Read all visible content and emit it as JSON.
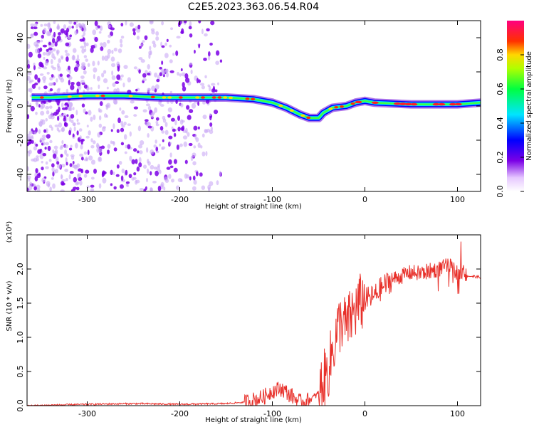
{
  "title": "C2E5.2023.363.06.54.R04",
  "colors": {
    "snr_line": "#e8302a",
    "spectrogram_low": "#7b00e6",
    "spectrogram_high": "#ff1a1a"
  },
  "chart_data": [
    {
      "type": "heatmap",
      "xlabel": "Height of straight line (km)",
      "ylabel": "Frequency (Hz)",
      "xlim": [
        -365,
        125
      ],
      "ylim": [
        -50,
        50
      ],
      "xticks": [
        -300,
        -200,
        -100,
        0,
        100
      ],
      "yticks": [
        -40,
        -20,
        0,
        20,
        40
      ],
      "colorbar": {
        "label": "Normalized spectral amplitude",
        "range": [
          0.0,
          1.0
        ],
        "ticks": [
          "0.0",
          "0.2",
          "0.4",
          "0.6",
          "0.8"
        ],
        "colormap": "rainbow (white-purple-blue-cyan-green-yellow-red-magenta)"
      },
      "ridge_frequency_track": {
        "x": [
          -360,
          -340,
          -300,
          -260,
          -220,
          -180,
          -150,
          -120,
          -100,
          -85,
          -70,
          -60,
          -50,
          -45,
          -35,
          -20,
          -10,
          0,
          10,
          50,
          100,
          125
        ],
        "y": [
          5,
          5,
          6,
          6,
          5,
          5,
          5,
          4,
          2,
          -1,
          -5,
          -7,
          -7,
          -4,
          -1,
          0,
          2,
          3,
          2,
          1,
          1,
          2
        ]
      },
      "grid": false
    },
    {
      "type": "line",
      "xlabel": "Height of straight line (km)",
      "ylabel": "SNR (10 * v/v)",
      "y_multiplier": "(x10⁴)",
      "xlim": [
        -365,
        125
      ],
      "ylim": [
        0,
        2.5
      ],
      "xticks": [
        -300,
        -200,
        -100,
        0,
        100
      ],
      "yticks": [
        "0.0",
        "0.5",
        "1.0",
        "1.5",
        "2.0"
      ],
      "series": [
        {
          "x": [
            -365,
            -300,
            -250,
            -200,
            -150,
            -130,
            -110,
            -100,
            -90,
            -80,
            -70,
            -60,
            -50,
            -45,
            -40,
            -35,
            -30,
            -25,
            -20,
            -15,
            -10,
            -5,
            0,
            10,
            20,
            30,
            40,
            50,
            60,
            70,
            80,
            90,
            100,
            110,
            125
          ],
          "values": [
            0.0,
            0.02,
            0.03,
            0.02,
            0.03,
            0.05,
            0.12,
            0.22,
            0.25,
            0.15,
            0.05,
            0.08,
            0.18,
            0.35,
            0.5,
            0.8,
            1.1,
            1.25,
            1.15,
            1.3,
            1.4,
            1.5,
            1.55,
            1.6,
            1.75,
            1.85,
            1.9,
            1.95,
            1.93,
            1.97,
            2.0,
            2.05,
            1.95,
            1.9,
            1.88
          ]
        }
      ],
      "grid": false
    }
  ]
}
